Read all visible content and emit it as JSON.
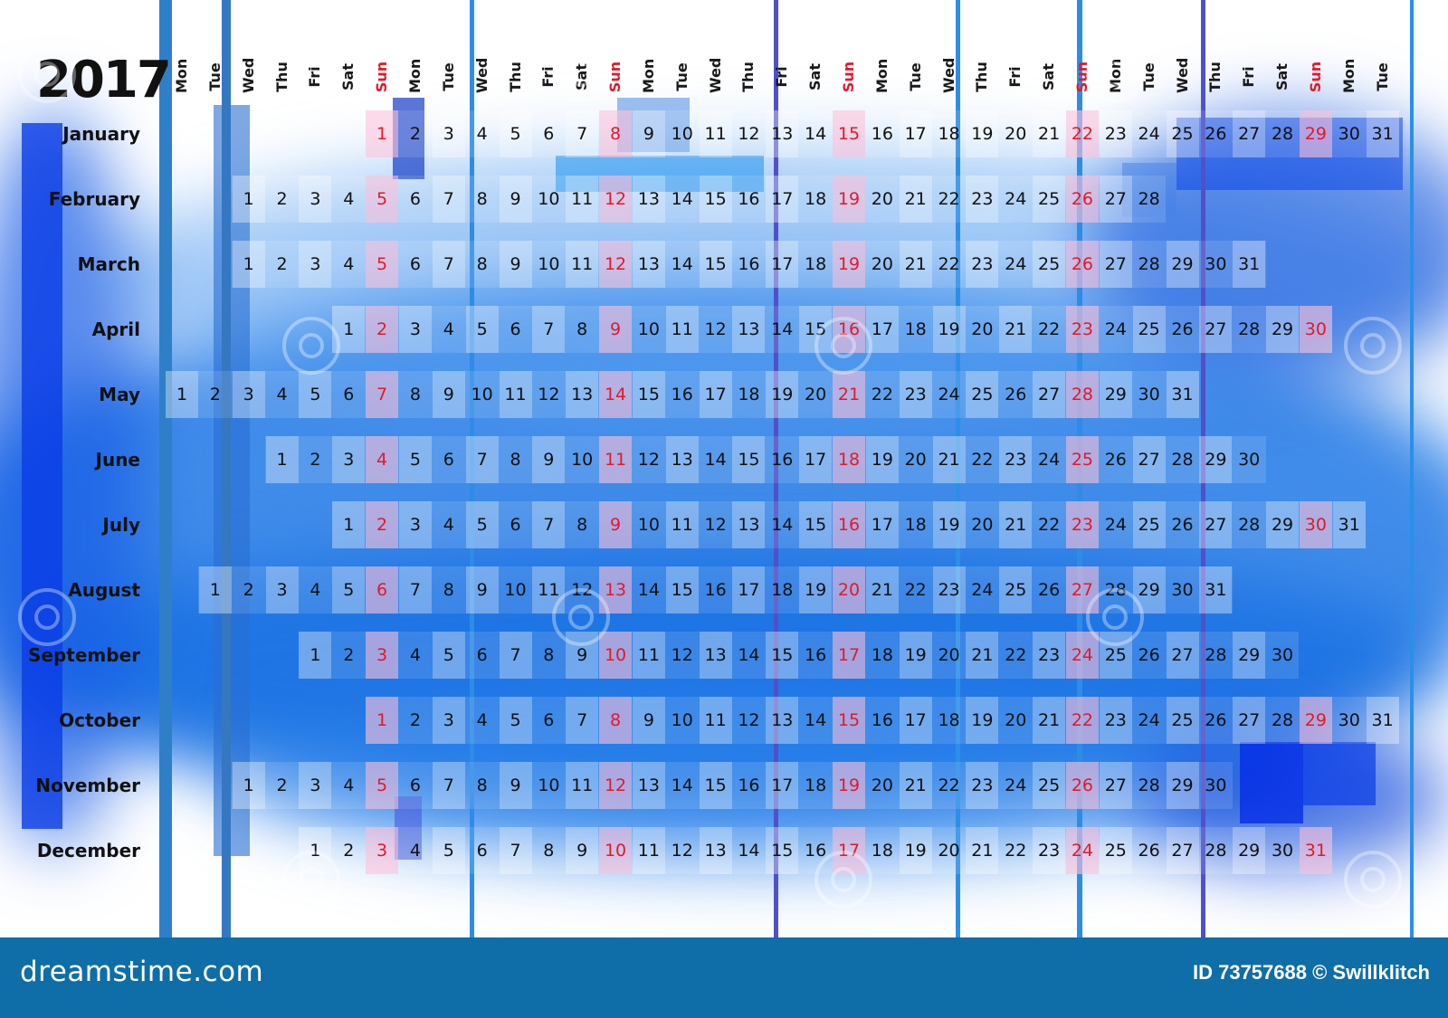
{
  "year": "2017",
  "weekdays": [
    "Mon",
    "Tue",
    "Wed",
    "Thu",
    "Fri",
    "Sat",
    "Sun",
    "Mon",
    "Tue",
    "Wed",
    "Thu",
    "Fri",
    "Sat",
    "Sun",
    "Mon",
    "Tue",
    "Wed",
    "Thu",
    "Fri",
    "Sat",
    "Sun",
    "Mon",
    "Tue",
    "Wed",
    "Thu",
    "Fri",
    "Sat",
    "Sun",
    "Mon",
    "Tue",
    "Wed",
    "Thu",
    "Fri",
    "Sat",
    "Sun",
    "Mon",
    "Tue"
  ],
  "months": [
    {
      "name": "January",
      "start_col": 6,
      "days": 31
    },
    {
      "name": "February",
      "start_col": 2,
      "days": 28
    },
    {
      "name": "March",
      "start_col": 2,
      "days": 31
    },
    {
      "name": "April",
      "start_col": 5,
      "days": 30
    },
    {
      "name": "May",
      "start_col": 0,
      "days": 31
    },
    {
      "name": "June",
      "start_col": 3,
      "days": 30
    },
    {
      "name": "July",
      "start_col": 5,
      "days": 31
    },
    {
      "name": "August",
      "start_col": 1,
      "days": 31
    },
    {
      "name": "September",
      "start_col": 4,
      "days": 30
    },
    {
      "name": "October",
      "start_col": 6,
      "days": 31
    },
    {
      "name": "November",
      "start_col": 2,
      "days": 30
    },
    {
      "name": "December",
      "start_col": 4,
      "days": 31
    }
  ],
  "footer": {
    "brand": "dreamstime.com",
    "credit": "ID 73757688 © Swillklitch"
  },
  "colors": {
    "sunday": "#e01a2a",
    "footer_bg": "#0f6ea8",
    "blue_primary": "#1565e0",
    "blue_light": "#5aa8ee"
  }
}
